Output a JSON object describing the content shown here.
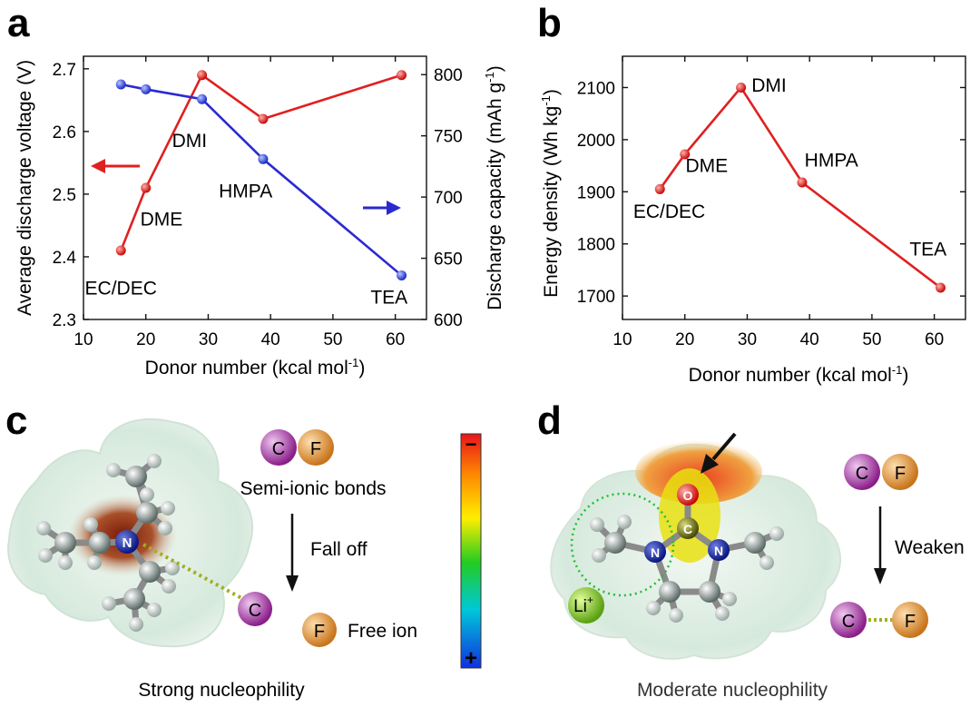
{
  "panels": {
    "a": "a",
    "b": "b",
    "c": "c",
    "d": "d"
  },
  "colors": {
    "red": "#e02020",
    "blue": "#2a2ad0",
    "axis": "#111111"
  },
  "chart_data": [
    {
      "panel": "a",
      "type": "line",
      "xlabel": "Donor number (kcal mol",
      "xlabel_sup": "-1",
      "xlabel_end": ")",
      "ylabel": "Average discharge voltage (V)",
      "y2label": "Discharge capacity (mAh g",
      "y2label_sup": "-1",
      "y2label_end": ")",
      "xlim": [
        10,
        65
      ],
      "ylim": [
        2.3,
        2.72
      ],
      "y2lim": [
        600,
        815
      ],
      "xticks": [
        10,
        20,
        30,
        40,
        50,
        60
      ],
      "yticks": [
        "2.3",
        "2.4",
        "2.5",
        "2.6",
        "2.7"
      ],
      "y2ticks": [
        "600",
        "650",
        "700",
        "750",
        "800"
      ],
      "series": [
        {
          "name": "Average discharge voltage",
          "axis": "left",
          "color": "#e02020",
          "x": [
            16,
            20,
            29,
            38.8,
            61
          ],
          "y": [
            2.41,
            2.51,
            2.69,
            2.62,
            2.69
          ]
        },
        {
          "name": "Discharge capacity",
          "axis": "right",
          "color": "#2a2ad0",
          "x": [
            16,
            20,
            29,
            38.8,
            61
          ],
          "y": [
            792,
            788,
            780,
            731,
            636
          ]
        }
      ],
      "annotations": [
        {
          "text": "EC/DEC",
          "x": 16,
          "y": 2.34
        },
        {
          "text": "DME",
          "x": 22.5,
          "y": 2.45
        },
        {
          "text": "DMI",
          "x": 27,
          "y": 2.575
        },
        {
          "text": "HMPA",
          "x": 36,
          "y": 2.495
        },
        {
          "text": "TEA",
          "x": 59,
          "y": 2.325
        }
      ]
    },
    {
      "panel": "b",
      "type": "line",
      "xlabel": "Donor number (kcal mol",
      "xlabel_sup": "-1",
      "xlabel_end": ")",
      "ylabel": "Energy density (Wh kg",
      "ylabel_sup": "-1",
      "ylabel_end": ")",
      "xlim": [
        10,
        65
      ],
      "ylim": [
        1655,
        2160
      ],
      "xticks": [
        10,
        20,
        30,
        40,
        50,
        60
      ],
      "yticks": [
        "1700",
        "1800",
        "1900",
        "2000",
        "2100"
      ],
      "series": [
        {
          "name": "Energy density",
          "color": "#e02020",
          "x": [
            16,
            20,
            29,
            38.8,
            61
          ],
          "y": [
            1905,
            1972,
            2100,
            1918,
            1716
          ]
        }
      ],
      "annotations": [
        {
          "text": "EC/DEC",
          "x": 17.5,
          "y": 1850
        },
        {
          "text": "DME",
          "x": 23.5,
          "y": 1938
        },
        {
          "text": "DMI",
          "x": 33.5,
          "y": 2092
        },
        {
          "text": "HMPA",
          "x": 43.5,
          "y": 1948
        },
        {
          "text": "TEA",
          "x": 59,
          "y": 1778
        }
      ]
    }
  ],
  "panel_c": {
    "atom_n": "N",
    "atom_c": "C",
    "atom_f": "F",
    "semi_ionic_label": "Semi-ionic bonds",
    "fall_off_label": "Fall off",
    "free_ion_label": "Free ion",
    "caption": "Strong nucleophility",
    "scale_minus": "−",
    "scale_plus": "+"
  },
  "panel_d": {
    "atom_o": "O",
    "atom_c": "C",
    "atom_n": "N",
    "atom_f": "F",
    "li_label": "Li",
    "li_sup": "+",
    "weaken_label": "Weaken",
    "caption": "Moderate  nucleophility"
  }
}
